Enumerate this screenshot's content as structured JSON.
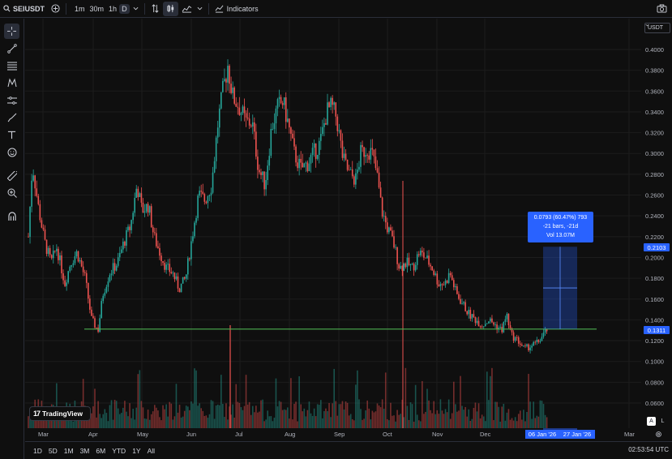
{
  "toolbar": {
    "search_icon": "search-icon",
    "symbol": "SEIUSDT",
    "add_icon": "plus-circle-icon",
    "intervals": [
      "1m",
      "30m",
      "1h",
      "D"
    ],
    "active_interval": "D",
    "indicators_label": "Indicators",
    "camera_icon": "camera-icon"
  },
  "left_tools": [
    "crosshair-icon",
    "trendline-icon",
    "fib-icon",
    "pattern-icon",
    "forecast-icon",
    "brush-icon",
    "text-icon",
    "emoji-icon",
    "ruler-icon",
    "zoom-icon",
    "magnet-icon"
  ],
  "chart": {
    "currency": "USDT",
    "price_labels": [
      "0.4000",
      "0.3800",
      "0.3600",
      "0.3400",
      "0.3200",
      "0.3000",
      "0.2800",
      "0.2600",
      "0.2400",
      "0.2200",
      "0.2000",
      "0.1800",
      "0.1600",
      "0.1400",
      "0.1200",
      "0.1000",
      "0.0800",
      "0.0600"
    ],
    "month_labels": [
      "Mar",
      "Apr",
      "May",
      "Jun",
      "Jul",
      "Aug",
      "Sep",
      "Oct",
      "Nov",
      "Dec",
      "Mar"
    ],
    "upper_tag": "0.2103",
    "lower_tag": "0.1311",
    "measure": {
      "line1": "0.0793 (60.47%) 793",
      "line2": "-21 bars, -21d",
      "line3": "Vol 13.07M"
    },
    "date_start": "06 Jan '26",
    "date_end": "27 Jan '26",
    "support_level": 0.1311,
    "colors": {
      "up": "#26a69a",
      "down": "#ef5350",
      "support": "#4caf50",
      "accent": "#2962ff"
    }
  },
  "branding": {
    "logo_text": "TradingView"
  },
  "scale_buttons": {
    "auto": "A",
    "log": "L"
  },
  "bottombar": {
    "ranges": [
      "1D",
      "5D",
      "1M",
      "3M",
      "6M",
      "YTD",
      "1Y",
      "All"
    ],
    "clock": "02:53:54 UTC"
  }
}
